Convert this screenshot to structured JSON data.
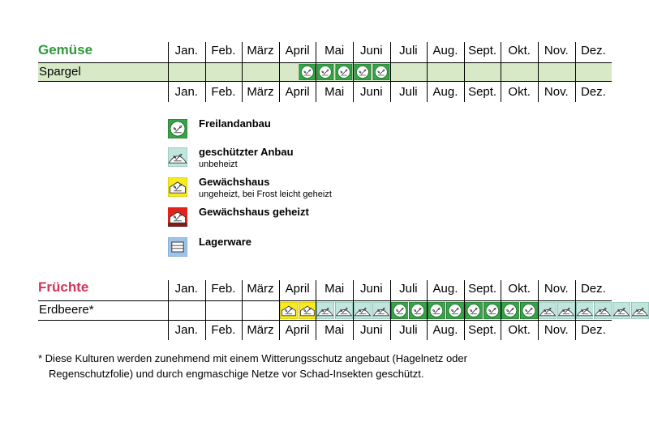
{
  "months": [
    "Jan.",
    "Feb.",
    "März",
    "April",
    "Mai",
    "Juni",
    "Juli",
    "Aug.",
    "Sept.",
    "Okt.",
    "Nov.",
    "Dez."
  ],
  "sections": [
    {
      "title": "Gemüse",
      "title_color": "#2e9a3a",
      "crop": "Spargel",
      "row_color": "#d8e9c8",
      "symbols": [
        "freiland",
        "freiland",
        "freiland",
        "freiland",
        "freiland"
      ]
    },
    {
      "title": "Früchte",
      "title_color": "#d6315a",
      "crop": "Erdbeere*",
      "row_color": "#ffffff",
      "symbols": [
        "gewaechshaus",
        "gewaechshaus",
        "geschuetzt",
        "geschuetzt",
        "geschuetzt",
        "geschuetzt",
        "freiland",
        "freiland",
        "freiland",
        "freiland",
        "freiland",
        "freiland",
        "freiland",
        "freiland",
        "geschuetzt",
        "geschuetzt",
        "geschuetzt",
        "geschuetzt",
        "geschuetzt",
        "geschuetzt"
      ]
    }
  ],
  "legend": [
    {
      "type": "freiland",
      "label": "Freilandanbau",
      "sub": ""
    },
    {
      "type": "geschuetzt",
      "label": "geschützter Anbau",
      "sub": "unbeheizt"
    },
    {
      "type": "gewaechshaus",
      "label": "Gewächshaus",
      "sub": "ungeheizt, bei Frost leicht geheizt"
    },
    {
      "type": "geheizt",
      "label": "Gewächshaus geheizt",
      "sub": ""
    },
    {
      "type": "lager",
      "label": "Lagerware",
      "sub": ""
    }
  ],
  "footnote": {
    "line1": "* Diese Kulturen werden zunehmend mit einem Witterungsschutz angebaut (Hagelnetz oder",
    "line2": "Regenschutzfolie) und durch engmaschige Netze vor Schad-Insekten geschützt."
  },
  "colors": {
    "freiland": "#35a547",
    "geschuetzt": "#bfe5dc",
    "gewaechshaus": "#f7ea1f",
    "geheizt": "#e2231a",
    "geheizt_band": "#7a1f1f",
    "lager": "#9ec3e8"
  }
}
